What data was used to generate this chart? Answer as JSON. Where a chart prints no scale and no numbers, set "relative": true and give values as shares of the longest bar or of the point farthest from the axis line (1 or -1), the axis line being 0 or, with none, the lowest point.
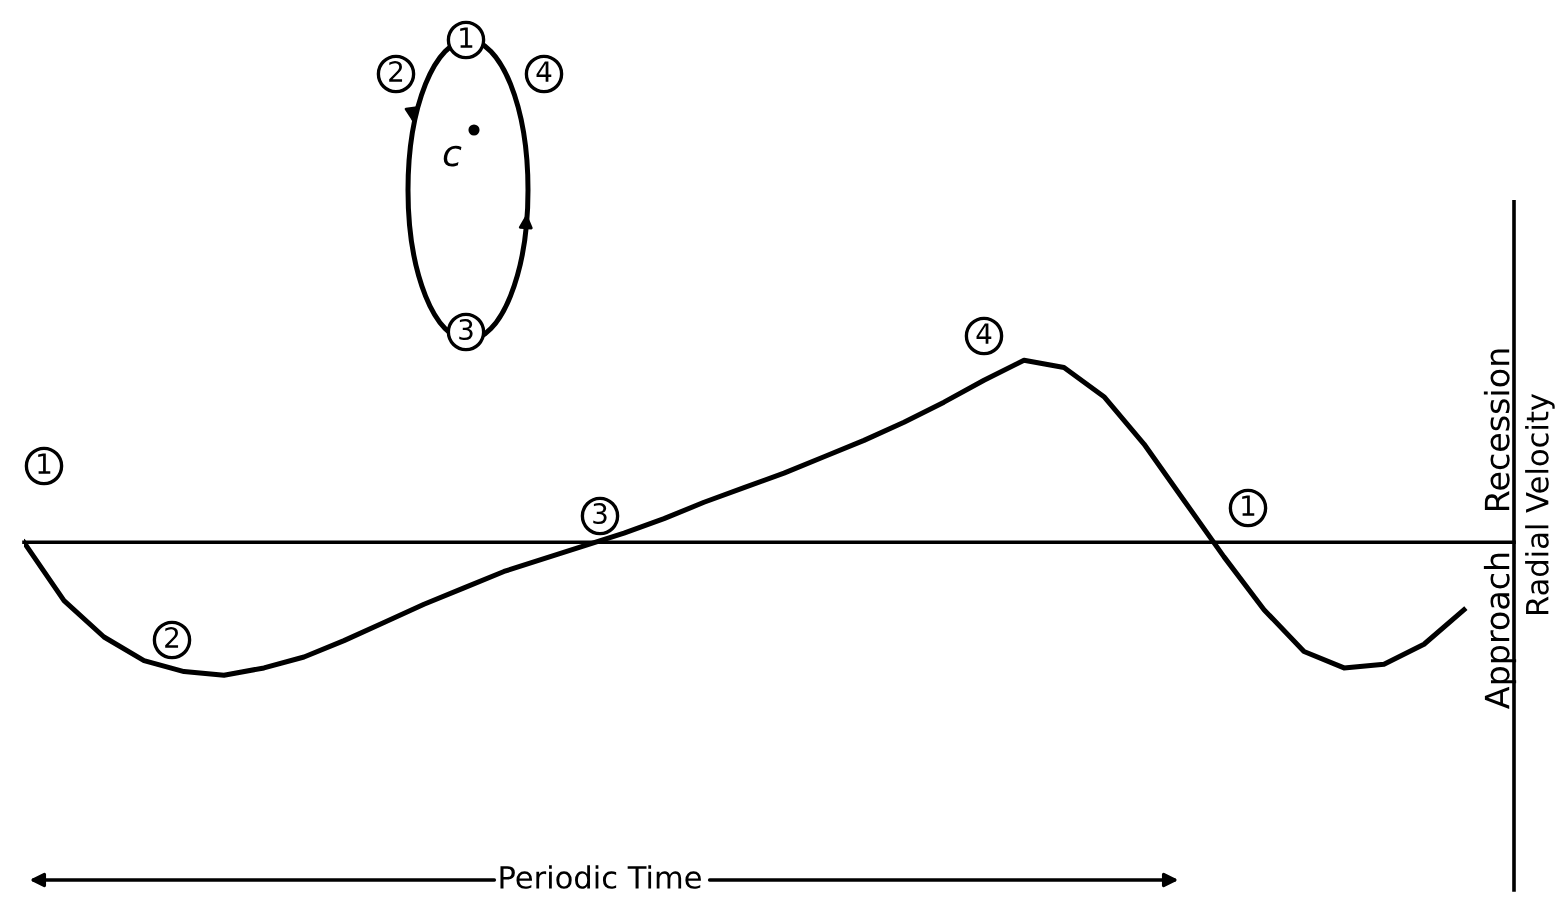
{
  "chart_data": {
    "type": "line",
    "relative": true,
    "ylabel": "Radial Velocity",
    "color": "#000000",
    "grid": false,
    "legend": false,
    "marker": "none",
    "line_style": "solid",
    "categories": [
      null,
      null,
      null,
      null,
      null,
      null,
      null,
      null,
      null,
      null,
      null,
      null,
      null,
      null,
      null,
      null,
      null,
      null,
      null,
      null,
      null,
      null,
      null,
      null,
      null,
      null,
      null,
      null,
      null,
      null,
      null,
      null,
      null,
      null,
      null,
      null,
      null
    ],
    "values": [
      0,
      -0.32,
      -0.52,
      -0.65,
      -0.71,
      -0.73,
      -0.69,
      -0.63,
      -0.54,
      -0.44,
      -0.34,
      -0.25,
      -0.16,
      -0.09,
      -0.02,
      0.05,
      0.13,
      0.22,
      0.3,
      0.38,
      0.47,
      0.56,
      0.66,
      0.77,
      0.89,
      1.0,
      0.96,
      0.8,
      0.54,
      0.23,
      -0.08,
      -0.37,
      -0.6,
      -0.69,
      -0.67,
      -0.56,
      -0.37
    ],
    "annotations": [
      "1",
      "2",
      "3",
      "4",
      "1",
      "1",
      "2",
      "4",
      "3",
      "c",
      "Recession",
      "Approach",
      "Periodic Time"
    ]
  }
}
